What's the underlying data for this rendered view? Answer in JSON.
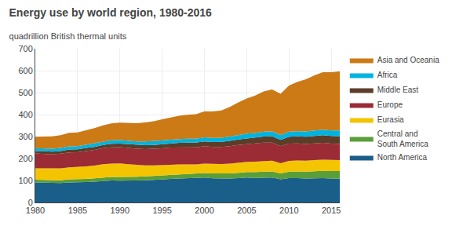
{
  "chart_data": {
    "type": "area",
    "title": "Energy use by world region, 1980-2016",
    "subtitle": "quadrillion British thermal units",
    "stacked": true,
    "x": [
      1980,
      1981,
      1982,
      1983,
      1984,
      1985,
      1986,
      1987,
      1988,
      1989,
      1990,
      1991,
      1992,
      1993,
      1994,
      1995,
      1996,
      1997,
      1998,
      1999,
      2000,
      2001,
      2002,
      2003,
      2004,
      2005,
      2006,
      2007,
      2008,
      2009,
      2010,
      2011,
      2012,
      2013,
      2014,
      2015,
      2016
    ],
    "series": [
      {
        "name": "North America",
        "color": "#1a5e8a",
        "values": [
          91,
          90,
          87,
          88,
          91,
          91,
          93,
          95,
          98,
          100,
          99,
          99,
          100,
          101,
          103,
          104,
          107,
          109,
          110,
          110,
          113,
          110,
          109,
          109,
          111,
          113,
          112,
          113,
          113,
          105,
          111,
          111,
          109,
          110,
          111,
          109,
          108
        ]
      },
      {
        "name": "Central and\nSouth America",
        "color": "#5a9e3a",
        "values": [
          13,
          13,
          13,
          13,
          14,
          14,
          14,
          15,
          16,
          16,
          17,
          17,
          17,
          18,
          18,
          19,
          19,
          20,
          20,
          21,
          21,
          22,
          22,
          23,
          24,
          25,
          26,
          27,
          28,
          27,
          29,
          30,
          31,
          32,
          33,
          34,
          35
        ]
      },
      {
        "name": "Eurasia",
        "color": "#f5c400",
        "values": [
          51,
          52,
          53,
          54,
          55,
          56,
          57,
          58,
          60,
          61,
          62,
          58,
          54,
          50,
          48,
          46,
          45,
          44,
          43,
          42,
          43,
          43,
          44,
          45,
          46,
          47,
          48,
          49,
          49,
          47,
          49,
          50,
          50,
          51,
          51,
          51,
          50
        ]
      },
      {
        "name": "Europe",
        "color": "#9b2b35",
        "values": [
          68,
          67,
          66,
          67,
          68,
          68,
          70,
          71,
          73,
          74,
          74,
          74,
          74,
          74,
          75,
          77,
          79,
          78,
          78,
          78,
          79,
          78,
          78,
          79,
          81,
          81,
          82,
          83,
          82,
          77,
          79,
          78,
          76,
          76,
          76,
          74,
          73
        ]
      },
      {
        "name": "Middle East",
        "color": "#5c3d28",
        "values": [
          11,
          12,
          12,
          12,
          13,
          13,
          14,
          14,
          15,
          16,
          16,
          17,
          17,
          18,
          18,
          19,
          19,
          20,
          21,
          21,
          22,
          22,
          23,
          24,
          25,
          26,
          27,
          28,
          29,
          29,
          31,
          32,
          33,
          34,
          35,
          35,
          36
        ]
      },
      {
        "name": "Africa",
        "color": "#00b4e0",
        "values": [
          13,
          13,
          14,
          14,
          14,
          14,
          15,
          15,
          15,
          16,
          16,
          16,
          16,
          17,
          17,
          17,
          17,
          18,
          18,
          18,
          18,
          19,
          19,
          20,
          20,
          21,
          21,
          22,
          22,
          22,
          23,
          23,
          24,
          24,
          25,
          25,
          26
        ]
      },
      {
        "name": "Asia and Oceania",
        "color": "#cc7a16",
        "values": [
          52,
          54,
          56,
          58,
          62,
          63,
          66,
          70,
          74,
          77,
          79,
          80,
          83,
          86,
          91,
          97,
          102,
          106,
          109,
          112,
          118,
          120,
          124,
          135,
          148,
          160,
          171,
          183,
          191,
          188,
          210,
          225,
          238,
          252,
          262,
          265,
          268
        ]
      }
    ],
    "xlim": [
      1980,
      2016
    ],
    "xticks": [
      1980,
      1985,
      1990,
      1995,
      2000,
      2005,
      2010,
      2015
    ],
    "ylim": [
      0,
      700
    ],
    "yticks": [
      0,
      100,
      200,
      300,
      400,
      500,
      600,
      700
    ],
    "grid": true,
    "legend": "right"
  }
}
